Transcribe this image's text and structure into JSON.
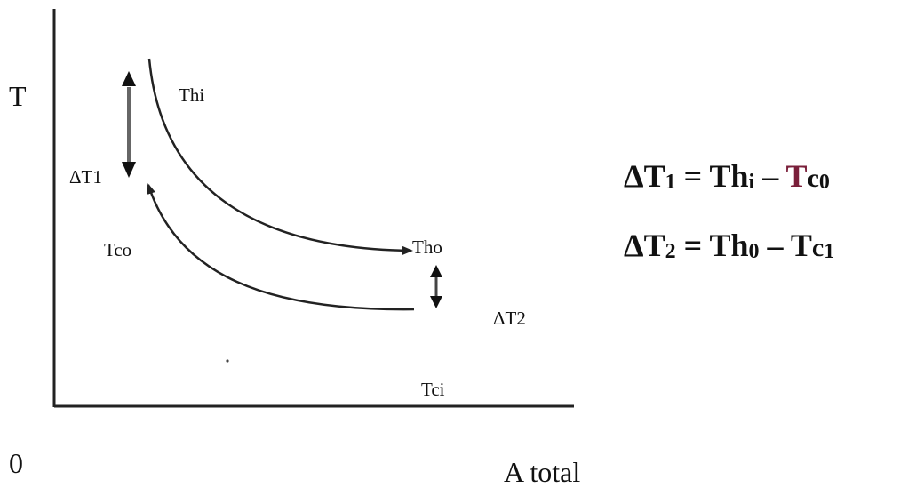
{
  "diagram": {
    "y_axis_label": "T",
    "x_axis_label": "A total",
    "origin_label": "0",
    "labels": {
      "thi": "Thi",
      "tho": "Tho",
      "tco": "Tco",
      "tci": "Tci",
      "dt1": "ΔT1",
      "dt2": "ΔT2"
    },
    "equations": {
      "eq1": {
        "lhs": "ΔT",
        "lhs_sub": "1",
        "equals": " = ",
        "term1": "Th",
        "term1_sub": "i",
        "minus": " – ",
        "term2_main": "T",
        "term2_lower": "c",
        "term2_sub": "0"
      },
      "eq2": {
        "lhs": "ΔT",
        "lhs_sub": "2",
        "equals": " = ",
        "term1": "Th",
        "term1_sub": "0",
        "minus": " – ",
        "term2_main": "T",
        "term2_lower": "c",
        "term2_sub": "1"
      }
    },
    "colors": {
      "line": "#222222",
      "delta_arrow": "#555555",
      "accent": "#7a1f3a"
    }
  }
}
